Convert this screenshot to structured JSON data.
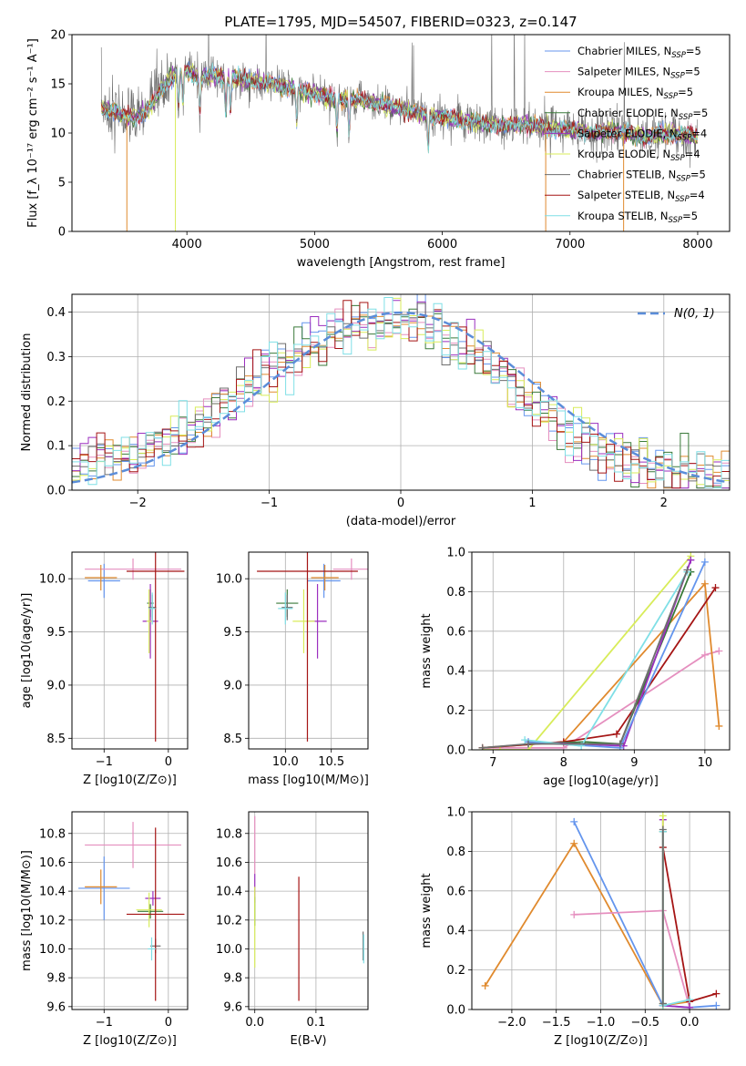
{
  "figure_title": "PLATE=1795, MJD=54507, FIBERID=0323, z=0.147",
  "colors": {
    "chabrier_miles": "#6495ED",
    "salpeter_miles": "#E58FBF",
    "kroupa_miles": "#E08A2E",
    "chabrier_elodie": "#3A7A3A",
    "salpeter_elodie": "#9B2FBF",
    "kroupa_elodie": "#D8EC5A",
    "chabrier_stelib": "#6E6E6E",
    "salpeter_stelib": "#A51515",
    "kroupa_stelib": "#7FDFE6",
    "normal": "#5B8DD9",
    "grid": "#B0B0B0"
  },
  "chart_data": [
    {
      "id": "spectrum",
      "type": "line",
      "title": "PLATE=1795, MJD=54507, FIBERID=0323, z=0.147",
      "xlabel": "wavelength [Angstrom, rest frame]",
      "ylabel": "Flux [f_λ 10⁻¹⁷ erg cm⁻² s⁻¹ A⁻¹]",
      "xlim": [
        3100,
        8250
      ],
      "ylim": [
        0,
        20
      ],
      "xticks": [
        4000,
        5000,
        6000,
        7000,
        8000
      ],
      "yticks": [
        0,
        5,
        10,
        15,
        20
      ],
      "grid": false,
      "legend_position": "top-right",
      "legend": [
        {
          "base": "Chabrier MILES, N",
          "sub": "SSP",
          "tail": "=5",
          "color": "#6495ED"
        },
        {
          "base": "Salpeter MILES, N",
          "sub": "SSP",
          "tail": "=5",
          "color": "#E58FBF"
        },
        {
          "base": "Kroupa MILES, N",
          "sub": "SSP",
          "tail": "=5",
          "color": "#E08A2E"
        },
        {
          "base": "Chabrier ELODIE, N",
          "sub": "SSP",
          "tail": "=5",
          "color": "#3A7A3A"
        },
        {
          "base": "Salpeter ELODIE, N",
          "sub": "SSP",
          "tail": "=4",
          "color": "#9B2FBF"
        },
        {
          "base": "Kroupa ELODIE, N",
          "sub": "SSP",
          "tail": "=4",
          "color": "#D8EC5A"
        },
        {
          "base": "Chabrier STELIB, N",
          "sub": "SSP",
          "tail": "=5",
          "color": "#6E6E6E"
        },
        {
          "base": "Salpeter STELIB, N",
          "sub": "SSP",
          "tail": "=4",
          "color": "#A51515"
        },
        {
          "base": "Kroupa STELIB, N",
          "sub": "SSP",
          "tail": "=5",
          "color": "#7FDFE6"
        }
      ],
      "continuum": {
        "x": [
          3310,
          3400,
          3500,
          3600,
          3700,
          3800,
          3900,
          4000,
          4100,
          4200,
          4300,
          4400,
          4500,
          4600,
          4700,
          4800,
          4900,
          5000,
          5100,
          5200,
          5300,
          5400,
          5500,
          5600,
          5700,
          5800,
          5900,
          6000,
          6100,
          6200,
          6300,
          6400,
          6500,
          6600,
          6700,
          6800,
          6900,
          7000,
          7100,
          7200,
          7300,
          7400,
          7500,
          7600,
          7700,
          7800,
          7900,
          8000
        ],
        "y": [
          12.5,
          12.4,
          11.8,
          11.6,
          12.5,
          14.5,
          16.0,
          16.3,
          15.6,
          15.9,
          15.6,
          15.5,
          15.3,
          15.1,
          14.9,
          14.6,
          14.3,
          14.0,
          13.7,
          13.5,
          13.4,
          13.2,
          13.0,
          12.7,
          12.4,
          12.1,
          11.8,
          11.6,
          11.4,
          11.2,
          11.0,
          10.8,
          10.7,
          11.0,
          10.8,
          10.6,
          10.4,
          10.3,
          10.2,
          10.0,
          10.3,
          10.0,
          9.9,
          9.5,
          10.0,
          9.9,
          9.8,
          9.7
        ]
      },
      "model_dropouts": [
        {
          "model": "Kroupa MILES",
          "x": 3530
        },
        {
          "model": "Kroupa ELODIE",
          "x": 3910
        },
        {
          "model": "Kroupa MILES",
          "x": 6810
        },
        {
          "model": "Kroupa MILES",
          "x": 7420
        }
      ]
    },
    {
      "id": "residuals",
      "type": "histogram",
      "xlabel": "(data-model)/error",
      "ylabel": "Normed distribution",
      "xlim": [
        -2.5,
        2.5
      ],
      "ylim": [
        0,
        0.44
      ],
      "xticks": [
        -2,
        -1,
        0,
        1,
        2
      ],
      "yticks": [
        0.0,
        0.1,
        0.2,
        0.3,
        0.4
      ],
      "grid": true,
      "legend_position": "top-right",
      "legend": [
        {
          "label": "N(0, 1)",
          "color": "#5B8DD9",
          "style": "dashed"
        }
      ],
      "bin_width": 0.1,
      "bin_start": -2.5,
      "envelope": [
        0.05,
        0.06,
        0.06,
        0.07,
        0.06,
        0.06,
        0.07,
        0.08,
        0.08,
        0.1,
        0.11,
        0.11,
        0.12,
        0.12,
        0.13,
        0.14,
        0.16,
        0.17,
        0.19,
        0.2,
        0.21,
        0.22,
        0.24,
        0.26,
        0.27,
        0.29,
        0.3,
        0.31,
        0.32,
        0.33,
        0.34,
        0.35,
        0.36,
        0.36,
        0.37,
        0.38,
        0.37,
        0.37,
        0.38,
        0.38,
        0.37,
        0.38,
        0.37,
        0.36,
        0.36,
        0.35,
        0.34,
        0.32,
        0.31,
        0.3,
        0.29,
        0.27,
        0.26,
        0.24,
        0.22,
        0.2,
        0.19,
        0.17,
        0.16,
        0.15,
        0.13,
        0.12,
        0.11,
        0.1,
        0.09,
        0.08,
        0.07,
        0.07,
        0.06,
        0.06,
        0.05,
        0.05,
        0.04,
        0.04,
        0.04,
        0.04,
        0.03,
        0.03,
        0.03,
        0.03
      ],
      "normal_curve": {
        "mu": 0,
        "sigma": 1
      }
    },
    {
      "id": "age_vs_Z",
      "type": "errorbar",
      "xlabel": "Z [log10(Z/Z⊙)]",
      "ylabel": "age [log10(age/yr)]",
      "xlim": [
        -1.5,
        0.3
      ],
      "ylim": [
        8.4,
        10.25
      ],
      "xticks": [
        -1,
        0
      ],
      "yticks": [
        8.5,
        9.0,
        9.5,
        10.0
      ],
      "grid": true,
      "points": [
        {
          "c": "#6495ED",
          "x": -1.0,
          "xe": 0.25,
          "y": 9.98,
          "ye": 0.16
        },
        {
          "c": "#E58FBF",
          "x": -0.55,
          "xe": 0.75,
          "y": 10.09,
          "ye": 0.1
        },
        {
          "c": "#E08A2E",
          "x": -1.05,
          "xe": 0.25,
          "y": 10.01,
          "ye": 0.12
        },
        {
          "c": "#3A7A3A",
          "x": -0.28,
          "xe": 0.05,
          "y": 9.77,
          "ye": 0.13
        },
        {
          "c": "#9B2FBF",
          "x": -0.28,
          "xe": 0.12,
          "y": 9.6,
          "ye": 0.35
        },
        {
          "c": "#D8EC5A",
          "x": -0.3,
          "xe": 0.04,
          "y": 9.6,
          "ye": 0.3
        },
        {
          "c": "#6E6E6E",
          "x": -0.25,
          "xe": 0.06,
          "y": 9.73,
          "ye": 0.12
        },
        {
          "c": "#A51515",
          "x": -0.2,
          "xe": 0.45,
          "y": 10.07,
          "ye": 1.6
        },
        {
          "c": "#7FDFE6",
          "x": -0.25,
          "xe": 0.05,
          "y": 9.72,
          "ye": 0.15
        }
      ]
    },
    {
      "id": "age_vs_mass",
      "type": "errorbar",
      "xlabel": "mass [log10(M/M⊙)]",
      "ylabel": "",
      "xlim": [
        9.6,
        10.9
      ],
      "ylim": [
        8.4,
        10.25
      ],
      "xticks": [
        10.0,
        10.5
      ],
      "yticks": [
        8.5,
        9.0,
        9.5,
        10.0
      ],
      "grid": true,
      "points": [
        {
          "c": "#6495ED",
          "x": 10.42,
          "xe": 0.18,
          "y": 9.98,
          "ye": 0.16
        },
        {
          "c": "#E58FBF",
          "x": 10.72,
          "xe": 0.2,
          "y": 10.09,
          "ye": 0.1
        },
        {
          "c": "#E08A2E",
          "x": 10.43,
          "xe": 0.15,
          "y": 10.01,
          "ye": 0.12
        },
        {
          "c": "#3A7A3A",
          "x": 10.02,
          "xe": 0.12,
          "y": 9.77,
          "ye": 0.13
        },
        {
          "c": "#9B2FBF",
          "x": 10.35,
          "xe": 0.1,
          "y": 9.6,
          "ye": 0.35
        },
        {
          "c": "#D8EC5A",
          "x": 10.2,
          "xe": 0.12,
          "y": 9.6,
          "ye": 0.3
        },
        {
          "c": "#6E6E6E",
          "x": 10.02,
          "xe": 0.06,
          "y": 9.73,
          "ye": 0.12
        },
        {
          "c": "#A51515",
          "x": 10.24,
          "xe": 0.55,
          "y": 10.07,
          "ye": 1.6
        },
        {
          "c": "#7FDFE6",
          "x": 10.0,
          "xe": 0.08,
          "y": 9.72,
          "ye": 0.15
        }
      ]
    },
    {
      "id": "weight_vs_age",
      "type": "line",
      "xlabel": "age [log10(age/yr)]",
      "ylabel": "mass weight",
      "xlim": [
        6.7,
        10.35
      ],
      "ylim": [
        0,
        1.0
      ],
      "xticks": [
        7,
        8,
        9,
        10
      ],
      "yticks": [
        0.0,
        0.2,
        0.4,
        0.6,
        0.8,
        1.0
      ],
      "grid": true,
      "series": [
        {
          "c": "#E58FBF",
          "x": [
            6.85,
            8.0,
            10.0,
            10.2
          ],
          "y": [
            0.01,
            0.01,
            0.48,
            0.5
          ]
        },
        {
          "c": "#E08A2E",
          "x": [
            6.85,
            8.0,
            10.0,
            10.2
          ],
          "y": [
            0.01,
            0.04,
            0.84,
            0.12
          ]
        },
        {
          "c": "#D8EC5A",
          "x": [
            6.85,
            7.1,
            7.5,
            9.8
          ],
          "y": [
            0.0,
            0.0,
            0.0,
            0.98
          ]
        },
        {
          "c": "#A51515",
          "x": [
            6.85,
            8.0,
            8.75,
            10.15
          ],
          "y": [
            0.01,
            0.04,
            0.08,
            0.82
          ]
        },
        {
          "c": "#3A7A3A",
          "x": [
            7.5,
            8.3,
            8.8,
            9.8
          ],
          "y": [
            0.03,
            0.04,
            0.03,
            0.9
          ]
        },
        {
          "c": "#9B2FBF",
          "x": [
            7.5,
            8.85,
            9.8
          ],
          "y": [
            0.04,
            0.02,
            0.96
          ]
        },
        {
          "c": "#6495ED",
          "x": [
            7.5,
            8.8,
            10.0
          ],
          "y": [
            0.04,
            0.01,
            0.95
          ]
        },
        {
          "c": "#7FDFE6",
          "x": [
            7.45,
            8.25,
            9.75
          ],
          "y": [
            0.05,
            0.02,
            0.9
          ]
        },
        {
          "c": "#6E6E6E",
          "x": [
            6.85,
            7.5,
            8.8,
            9.75
          ],
          "y": [
            0.01,
            0.03,
            0.03,
            0.91
          ]
        }
      ]
    },
    {
      "id": "mass_vs_Z",
      "type": "errorbar",
      "xlabel": "Z [log10(Z/Z⊙)]",
      "ylabel": "mass [log10(M/M⊙)]",
      "xlim": [
        -1.5,
        0.3
      ],
      "ylim": [
        9.58,
        10.95
      ],
      "xticks": [
        -1,
        0
      ],
      "yticks": [
        9.6,
        9.8,
        10.0,
        10.2,
        10.4,
        10.6,
        10.8
      ],
      "grid": true,
      "points": [
        {
          "c": "#6495ED",
          "x": -1.0,
          "xe": 0.4,
          "y": 10.42,
          "ye": 0.22
        },
        {
          "c": "#E58FBF",
          "x": -0.55,
          "xe": 0.75,
          "y": 10.72,
          "ye": 0.16
        },
        {
          "c": "#E08A2E",
          "x": -1.05,
          "xe": 0.25,
          "y": 10.43,
          "ye": 0.12
        },
        {
          "c": "#3A7A3A",
          "x": -0.28,
          "xe": 0.2,
          "y": 10.26,
          "ye": 0.05
        },
        {
          "c": "#9B2FBF",
          "x": -0.24,
          "xe": 0.12,
          "y": 10.35,
          "ye": 0.05
        },
        {
          "c": "#D8EC5A",
          "x": -0.3,
          "xe": 0.2,
          "y": 10.27,
          "ye": 0.12
        },
        {
          "c": "#6E6E6E",
          "x": -0.2,
          "xe": 0.08,
          "y": 10.02,
          "ye": 0.05
        },
        {
          "c": "#A51515",
          "x": -0.2,
          "xe": 0.45,
          "y": 10.24,
          "ye": 0.6
        },
        {
          "c": "#7FDFE6",
          "x": -0.26,
          "xe": 0.06,
          "y": 10.0,
          "ye": 0.08
        }
      ]
    },
    {
      "id": "mass_vs_ebv",
      "type": "errorbar",
      "xlabel": "E(B-V)",
      "ylabel": "",
      "xlim": [
        -0.01,
        0.185
      ],
      "ylim": [
        9.58,
        10.95
      ],
      "xticks": [
        0.0,
        0.1
      ],
      "yticks": [
        9.6,
        9.8,
        10.0,
        10.2,
        10.4,
        10.6,
        10.8
      ],
      "grid": true,
      "points": [
        {
          "c": "#E58FBF",
          "x": 0.0,
          "xe": 0,
          "y": 10.72,
          "ye": 0.2
        },
        {
          "c": "#9B2FBF",
          "x": 0.0,
          "xe": 0,
          "y": 10.42,
          "ye": 0.1
        },
        {
          "c": "#3A7A3A",
          "x": 0.0,
          "xe": 0,
          "y": 10.26,
          "ye": 0.1
        },
        {
          "c": "#D8EC5A",
          "x": 0.0,
          "xe": 0,
          "y": 10.15,
          "ye": 0.28
        },
        {
          "c": "#A51515",
          "x": 0.072,
          "xe": 0,
          "y": 10.07,
          "ye": 0.43
        },
        {
          "c": "#6E6E6E",
          "x": 0.177,
          "xe": 0,
          "y": 10.02,
          "ye": 0.1
        },
        {
          "c": "#7FDFE6",
          "x": 0.178,
          "xe": 0,
          "y": 10.0,
          "ye": 0.1
        }
      ]
    },
    {
      "id": "weight_vs_Z",
      "type": "line",
      "xlabel": "Z [log10(Z/Z⊙)]",
      "ylabel": "mass weight",
      "xlim": [
        -2.45,
        0.45
      ],
      "ylim": [
        0,
        1.0
      ],
      "xticks": [
        -2.0,
        -1.5,
        -1.0,
        -0.5,
        0.0
      ],
      "yticks": [
        0.0,
        0.2,
        0.4,
        0.6,
        0.8,
        1.0
      ],
      "grid": true,
      "series": [
        {
          "c": "#E08A2E",
          "x": [
            -2.3,
            -1.3,
            -0.3,
            0.0
          ],
          "y": [
            0.12,
            0.84,
            0.02,
            0.04
          ]
        },
        {
          "c": "#6495ED",
          "x": [
            -1.3,
            -0.3,
            0.0,
            0.3
          ],
          "y": [
            0.95,
            0.02,
            0.01,
            0.02
          ]
        },
        {
          "c": "#E58FBF",
          "x": [
            -1.3,
            -0.3,
            0.0
          ],
          "y": [
            0.48,
            0.5,
            0.01
          ]
        },
        {
          "c": "#A51515",
          "x": [
            -0.3,
            0.0,
            0.3
          ],
          "y": [
            0.82,
            0.04,
            0.08
          ]
        },
        {
          "c": "#9B2FBF",
          "x": [
            -0.3,
            -0.3,
            0.0
          ],
          "y": [
            0.96,
            0.02,
            0.01
          ]
        },
        {
          "c": "#3A7A3A",
          "x": [
            -0.3,
            -0.3
          ],
          "y": [
            0.9,
            0.03
          ]
        },
        {
          "c": "#D8EC5A",
          "x": [
            -0.3,
            -0.3
          ],
          "y": [
            0.98,
            0.0
          ]
        },
        {
          "c": "#7FDFE6",
          "x": [
            -0.3,
            -0.3,
            0.0
          ],
          "y": [
            0.9,
            0.02,
            0.05
          ]
        },
        {
          "c": "#6E6E6E",
          "x": [
            -0.3,
            -0.3
          ],
          "y": [
            0.91,
            0.03
          ]
        }
      ]
    }
  ]
}
